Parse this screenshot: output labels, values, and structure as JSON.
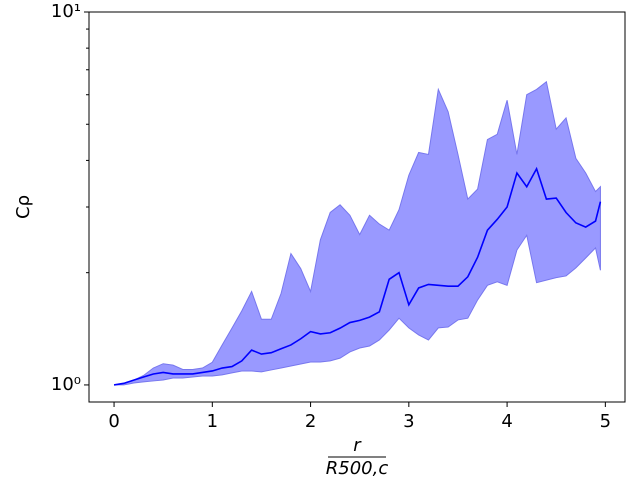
{
  "chart_data": {
    "type": "band-line",
    "ylabel": "Cρ",
    "xlabel_numerator": "r",
    "xlabel_denominator": "R500,c",
    "x": [
      0,
      0.1,
      0.2,
      0.3,
      0.4,
      0.5,
      0.6,
      0.7,
      0.8,
      0.9,
      1.0,
      1.1,
      1.2,
      1.3,
      1.4,
      1.5,
      1.6,
      1.7,
      1.8,
      1.9,
      2.0,
      2.1,
      2.2,
      2.3,
      2.4,
      2.5,
      2.6,
      2.7,
      2.8,
      2.9,
      3.0,
      3.1,
      3.2,
      3.3,
      3.4,
      3.5,
      3.6,
      3.7,
      3.8,
      3.9,
      4.0,
      4.1,
      4.2,
      4.3,
      4.4,
      4.5,
      4.6,
      4.7,
      4.8,
      4.9,
      4.95
    ],
    "line": {
      "color": "#0000ff",
      "values": [
        1.0,
        1.01,
        1.03,
        1.05,
        1.07,
        1.08,
        1.07,
        1.07,
        1.07,
        1.08,
        1.09,
        1.11,
        1.12,
        1.16,
        1.24,
        1.21,
        1.22,
        1.25,
        1.28,
        1.33,
        1.39,
        1.37,
        1.38,
        1.42,
        1.47,
        1.49,
        1.52,
        1.57,
        1.92,
        2.0,
        1.64,
        1.82,
        1.86,
        1.85,
        1.84,
        1.84,
        1.95,
        2.2,
        2.6,
        2.78,
        3.0,
        3.7,
        3.4,
        3.8,
        3.15,
        3.17,
        2.9,
        2.72,
        2.65,
        2.75,
        3.1
      ]
    },
    "band": {
      "color": "#9999ff",
      "edge_color": "#7777ee",
      "upper": [
        1.0,
        1.01,
        1.03,
        1.06,
        1.11,
        1.14,
        1.13,
        1.1,
        1.1,
        1.11,
        1.15,
        1.28,
        1.42,
        1.58,
        1.78,
        1.5,
        1.5,
        1.76,
        2.25,
        2.05,
        1.78,
        2.45,
        2.9,
        3.04,
        2.85,
        2.53,
        2.85,
        2.7,
        2.6,
        2.95,
        3.65,
        4.2,
        4.15,
        6.2,
        5.4,
        4.15,
        3.15,
        3.35,
        4.55,
        4.7,
        5.8,
        4.15,
        6.0,
        6.2,
        6.5,
        4.85,
        5.2,
        4.05,
        3.7,
        3.3,
        3.4
      ],
      "lower": [
        1.0,
        1.0,
        1.012,
        1.019,
        1.025,
        1.031,
        1.044,
        1.044,
        1.05,
        1.057,
        1.057,
        1.064,
        1.077,
        1.09,
        1.09,
        1.084,
        1.097,
        1.11,
        1.124,
        1.138,
        1.152,
        1.152,
        1.16,
        1.18,
        1.226,
        1.256,
        1.272,
        1.32,
        1.404,
        1.51,
        1.422,
        1.362,
        1.32,
        1.422,
        1.43,
        1.494,
        1.51,
        1.69,
        1.85,
        1.89,
        1.85,
        2.3,
        2.52,
        1.88,
        1.91,
        1.94,
        1.96,
        2.06,
        2.19,
        2.33,
        2.03
      ]
    },
    "xlim": [
      -0.255,
      5.2
    ],
    "xticks": [
      0,
      1,
      2,
      3,
      4,
      5
    ],
    "ylim": [
      0.9,
      10
    ],
    "log_y": true,
    "yticks": [
      {
        "value": 1,
        "label": "10⁰"
      },
      {
        "value": 10,
        "label": "10¹"
      }
    ],
    "yminor": [
      2,
      3,
      4,
      5,
      6,
      7,
      8,
      9
    ]
  }
}
